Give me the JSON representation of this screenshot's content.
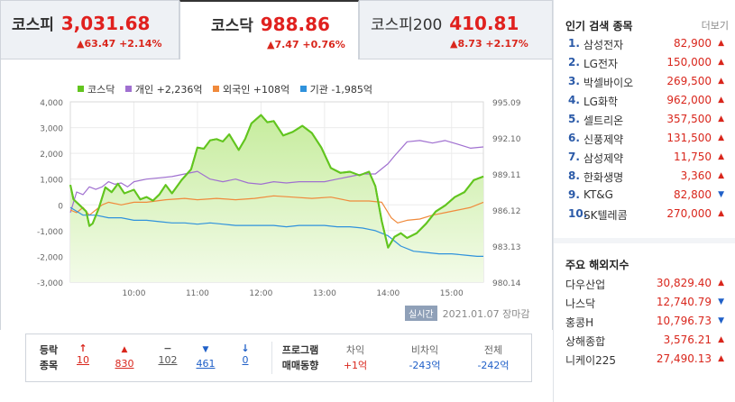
{
  "tabs": [
    {
      "name": "코스피",
      "value": "3,031.68",
      "change": "▲63.47 +2.14%"
    },
    {
      "name": "코스닥",
      "value": "988.86",
      "change": "▲7.47 +0.76%"
    },
    {
      "name": "코스피200",
      "value": "410.81",
      "change": "▲8.73 +2.17%"
    }
  ],
  "legend": {
    "kosdaq": "코스닥",
    "individual": "개인 +2,236억",
    "foreign": "외국인 +108억",
    "institution": "기관 -1,985억"
  },
  "colors": {
    "kosdaq": "#62c51f",
    "individual": "#a070d0",
    "foreign": "#f08a3c",
    "institution": "#2f92dc"
  },
  "stamp": {
    "badge": "실시간",
    "date": "2021.01.07 장마감"
  },
  "breadth": {
    "title_line1": "등락",
    "title_line2": "종목",
    "items": [
      {
        "icon": "↑",
        "count": "10"
      },
      {
        "icon": "▲",
        "count": "830"
      },
      {
        "icon": "−",
        "count": "102"
      },
      {
        "icon": "▼",
        "count": "461"
      },
      {
        "icon": "↓",
        "count": "0"
      }
    ]
  },
  "program": {
    "title_line1": "프로그램",
    "title_line2": "매매동향",
    "cols": [
      {
        "label": "차익",
        "value": "+1억"
      },
      {
        "label": "비차익",
        "value": "-243억"
      },
      {
        "label": "전체",
        "value": "-242억"
      }
    ]
  },
  "popular": {
    "title": "인기 검색 종목",
    "more": "더보기",
    "items": [
      {
        "rank": "1.",
        "name": "삼성전자",
        "price": "82,900",
        "dir": "up"
      },
      {
        "rank": "2.",
        "name": "LG전자",
        "price": "150,000",
        "dir": "up"
      },
      {
        "rank": "3.",
        "name": "박셀바이오",
        "price": "269,500",
        "dir": "up"
      },
      {
        "rank": "4.",
        "name": "LG화학",
        "price": "962,000",
        "dir": "up"
      },
      {
        "rank": "5.",
        "name": "셀트리온",
        "price": "357,500",
        "dir": "up"
      },
      {
        "rank": "6.",
        "name": "신풍제약",
        "price": "131,500",
        "dir": "up"
      },
      {
        "rank": "7.",
        "name": "삼성제약",
        "price": "11,750",
        "dir": "up"
      },
      {
        "rank": "8.",
        "name": "한화생명",
        "price": "3,360",
        "dir": "up"
      },
      {
        "rank": "9.",
        "name": "KT&G",
        "price": "82,800",
        "dir": "down"
      },
      {
        "rank": "10.",
        "name": "SK텔레콤",
        "price": "270,000",
        "dir": "up"
      }
    ]
  },
  "overseas": {
    "title": "주요 해외지수",
    "items": [
      {
        "name": "다우산업",
        "value": "30,829.40",
        "dir": "up"
      },
      {
        "name": "나스닥",
        "value": "12,740.79",
        "dir": "down"
      },
      {
        "name": "홍콩H",
        "value": "10,796.73",
        "dir": "down"
      },
      {
        "name": "상해종합",
        "value": "3,576.21",
        "dir": "up"
      },
      {
        "name": "니케이225",
        "value": "27,490.13",
        "dir": "up"
      }
    ]
  },
  "chart_data": {
    "type": "line",
    "x_ticks": [
      "10:00",
      "11:00",
      "12:00",
      "13:00",
      "14:00",
      "15:00"
    ],
    "left_axis": {
      "ticks": [
        "4,000",
        "3,000",
        "2,000",
        "1,000",
        "0",
        "-1,000",
        "-2,000",
        "-3,000"
      ],
      "ylim": [
        -3000,
        4000
      ]
    },
    "right_axis": {
      "ticks": [
        "995.09",
        "992.10",
        "989.11",
        "986.12",
        "983.13",
        "980.14"
      ],
      "ylim": [
        980.14,
        995.09
      ]
    },
    "series": [
      {
        "name": "코스닥",
        "axis": "right",
        "t": [
          9.0,
          9.05,
          9.15,
          9.25,
          9.3,
          9.35,
          9.45,
          9.55,
          9.65,
          9.75,
          9.85,
          10.0,
          10.1,
          10.2,
          10.3,
          10.4,
          10.5,
          10.6,
          10.75,
          10.9,
          11.0,
          11.1,
          11.2,
          11.3,
          11.4,
          11.5,
          11.65,
          11.75,
          11.85,
          12.0,
          12.1,
          12.2,
          12.35,
          12.5,
          12.65,
          12.8,
          12.95,
          13.1,
          13.25,
          13.4,
          13.55,
          13.7,
          13.8,
          13.9,
          14.0,
          14.1,
          14.2,
          14.3,
          14.45,
          14.6,
          14.75,
          14.9,
          15.05,
          15.2,
          15.35,
          15.5
        ],
        "values": [
          988.2,
          987.0,
          986.5,
          986.0,
          984.8,
          985.0,
          986.3,
          988.0,
          987.6,
          988.3,
          987.5,
          987.8,
          987.0,
          987.2,
          986.9,
          987.4,
          988.2,
          987.5,
          988.6,
          989.5,
          991.3,
          991.2,
          991.9,
          992.0,
          991.8,
          992.4,
          991.1,
          992.0,
          993.3,
          994.0,
          993.4,
          993.5,
          992.3,
          992.6,
          993.1,
          992.5,
          991.3,
          989.6,
          989.2,
          989.3,
          989.0,
          989.3,
          988.1,
          985.2,
          983.0,
          983.9,
          984.2,
          983.8,
          984.2,
          985.0,
          986.0,
          986.5,
          987.2,
          987.6,
          988.6,
          988.9
        ]
      },
      {
        "name": "개인 +2,236억",
        "axis": "left",
        "t": [
          9.0,
          9.1,
          9.2,
          9.3,
          9.4,
          9.5,
          9.6,
          9.7,
          9.8,
          9.9,
          10.0,
          10.2,
          10.4,
          10.6,
          10.8,
          11.0,
          11.2,
          11.4,
          11.6,
          11.8,
          12.0,
          12.2,
          12.4,
          12.6,
          12.8,
          13.0,
          13.2,
          13.4,
          13.6,
          13.8,
          14.0,
          14.1,
          14.3,
          14.5,
          14.7,
          14.9,
          15.1,
          15.3,
          15.5
        ],
        "values": [
          -300,
          500,
          400,
          700,
          600,
          700,
          900,
          800,
          850,
          700,
          900,
          1000,
          1050,
          1100,
          1200,
          1300,
          1000,
          900,
          1000,
          850,
          800,
          900,
          850,
          900,
          900,
          900,
          1000,
          1100,
          1200,
          1200,
          1600,
          1900,
          2450,
          2500,
          2400,
          2500,
          2350,
          2200,
          2250
        ]
      },
      {
        "name": "외국인 +108억",
        "axis": "left",
        "t": [
          9.0,
          9.1,
          9.2,
          9.3,
          9.4,
          9.5,
          9.6,
          9.8,
          10.0,
          10.2,
          10.5,
          10.8,
          11.0,
          11.3,
          11.6,
          11.9,
          12.2,
          12.5,
          12.8,
          13.1,
          13.4,
          13.7,
          13.9,
          14.05,
          14.15,
          14.3,
          14.5,
          14.7,
          14.9,
          15.1,
          15.3,
          15.5
        ],
        "values": [
          -200,
          -300,
          -100,
          -400,
          -200,
          0,
          100,
          0,
          100,
          100,
          200,
          250,
          200,
          250,
          200,
          250,
          350,
          300,
          250,
          300,
          150,
          150,
          100,
          -500,
          -700,
          -600,
          -550,
          -400,
          -300,
          -200,
          -100,
          100
        ]
      },
      {
        "name": "기관 -1,985억",
        "axis": "left",
        "t": [
          9.0,
          9.2,
          9.4,
          9.6,
          9.8,
          10.0,
          10.2,
          10.4,
          10.6,
          10.8,
          11.0,
          11.2,
          11.4,
          11.6,
          11.8,
          12.0,
          12.2,
          12.4,
          12.6,
          12.8,
          13.0,
          13.2,
          13.4,
          13.6,
          13.8,
          14.0,
          14.2,
          14.4,
          14.6,
          14.8,
          15.0,
          15.2,
          15.4,
          15.5
        ],
        "values": [
          -100,
          -400,
          -400,
          -500,
          -500,
          -600,
          -600,
          -650,
          -700,
          -700,
          -750,
          -700,
          -750,
          -800,
          -800,
          -800,
          -800,
          -850,
          -800,
          -800,
          -800,
          -850,
          -850,
          -900,
          -1000,
          -1200,
          -1600,
          -1800,
          -1850,
          -1900,
          -1900,
          -1950,
          -2000,
          -2000
        ]
      }
    ]
  }
}
